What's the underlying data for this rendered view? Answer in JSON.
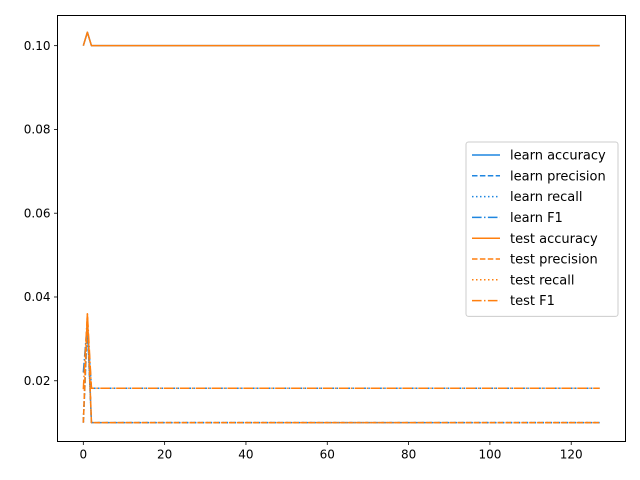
{
  "chart_data": {
    "type": "line",
    "title": "",
    "xlabel": "",
    "ylabel": "",
    "xlim": [
      -6.35,
      133.35
    ],
    "ylim": [
      0.0055,
      0.1072
    ],
    "xticks": [
      0,
      20,
      40,
      60,
      80,
      100,
      120
    ],
    "xtick_labels": [
      "0",
      "20",
      "40",
      "60",
      "80",
      "100",
      "120"
    ],
    "yticks": [
      0.02,
      0.04,
      0.06,
      0.08,
      0.1
    ],
    "ytick_labels": [
      "0.02",
      "0.04",
      "0.06",
      "0.08",
      "0.10"
    ],
    "grid": false,
    "legend_position": "right",
    "x_start": 0,
    "x_end": 127,
    "colors": {
      "learn": "#1f86e0",
      "test": "#ff7f0e"
    },
    "series": [
      {
        "name": "learn accuracy",
        "group": "learn",
        "style": "solid",
        "head": [
          0.1,
          0.1032,
          0.1
        ],
        "steady": 0.1
      },
      {
        "name": "learn precision",
        "group": "learn",
        "style": "dashed",
        "head": [
          0.01,
          0.033,
          0.01
        ],
        "steady": 0.01
      },
      {
        "name": "learn recall",
        "group": "learn",
        "style": "dotted",
        "head": [
          0.01,
          0.033,
          0.01
        ],
        "steady": 0.01
      },
      {
        "name": "learn F1",
        "group": "learn",
        "style": "dashdot",
        "head": [
          0.022,
          0.034,
          0.0182
        ],
        "steady": 0.0182
      },
      {
        "name": "test accuracy",
        "group": "test",
        "style": "solid",
        "head": [
          0.1,
          0.1032,
          0.1
        ],
        "steady": 0.1
      },
      {
        "name": "test precision",
        "group": "test",
        "style": "dashed",
        "head": [
          0.01,
          0.036,
          0.01
        ],
        "steady": 0.01
      },
      {
        "name": "test recall",
        "group": "test",
        "style": "dotted",
        "head": [
          0.01,
          0.036,
          0.01
        ],
        "steady": 0.01
      },
      {
        "name": "test F1",
        "group": "test",
        "style": "dashdot",
        "head": [
          0.018,
          0.036,
          0.0182
        ],
        "steady": 0.0182
      }
    ]
  }
}
